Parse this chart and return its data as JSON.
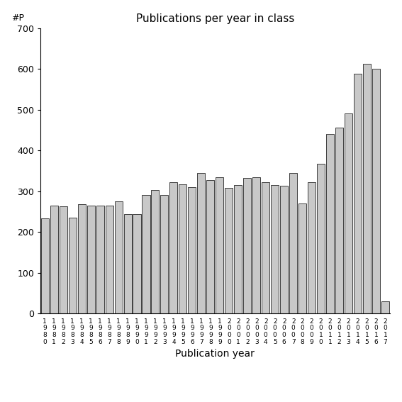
{
  "title": "Publications per year in class",
  "xlabel": "Publication year",
  "ylabel": "#P",
  "ylim": [
    0,
    700
  ],
  "yticks": [
    0,
    100,
    200,
    300,
    400,
    500,
    600,
    700
  ],
  "bar_color": "#c8c8c8",
  "bar_edgecolor": "#000000",
  "background_color": "#ffffff",
  "years": [
    "1980",
    "1981",
    "1982",
    "1983",
    "1984",
    "1985",
    "1986",
    "1987",
    "1988",
    "1989",
    "1990",
    "1991",
    "1992",
    "1993",
    "1994",
    "1995",
    "1996",
    "1997",
    "1998",
    "1999",
    "2000",
    "2001",
    "2002",
    "2003",
    "2004",
    "2005",
    "2006",
    "2007",
    "2008",
    "2009",
    "2010",
    "2011",
    "2012",
    "2013",
    "2014",
    "2015",
    "2016",
    "2017"
  ],
  "values": [
    233,
    265,
    263,
    235,
    268,
    265,
    265,
    265,
    275,
    244,
    244,
    290,
    303,
    290,
    322,
    317,
    310,
    345,
    328,
    335,
    308,
    315,
    332,
    335,
    322,
    315,
    313,
    345,
    270,
    322,
    367,
    441,
    456,
    490,
    588,
    612,
    600,
    30
  ]
}
